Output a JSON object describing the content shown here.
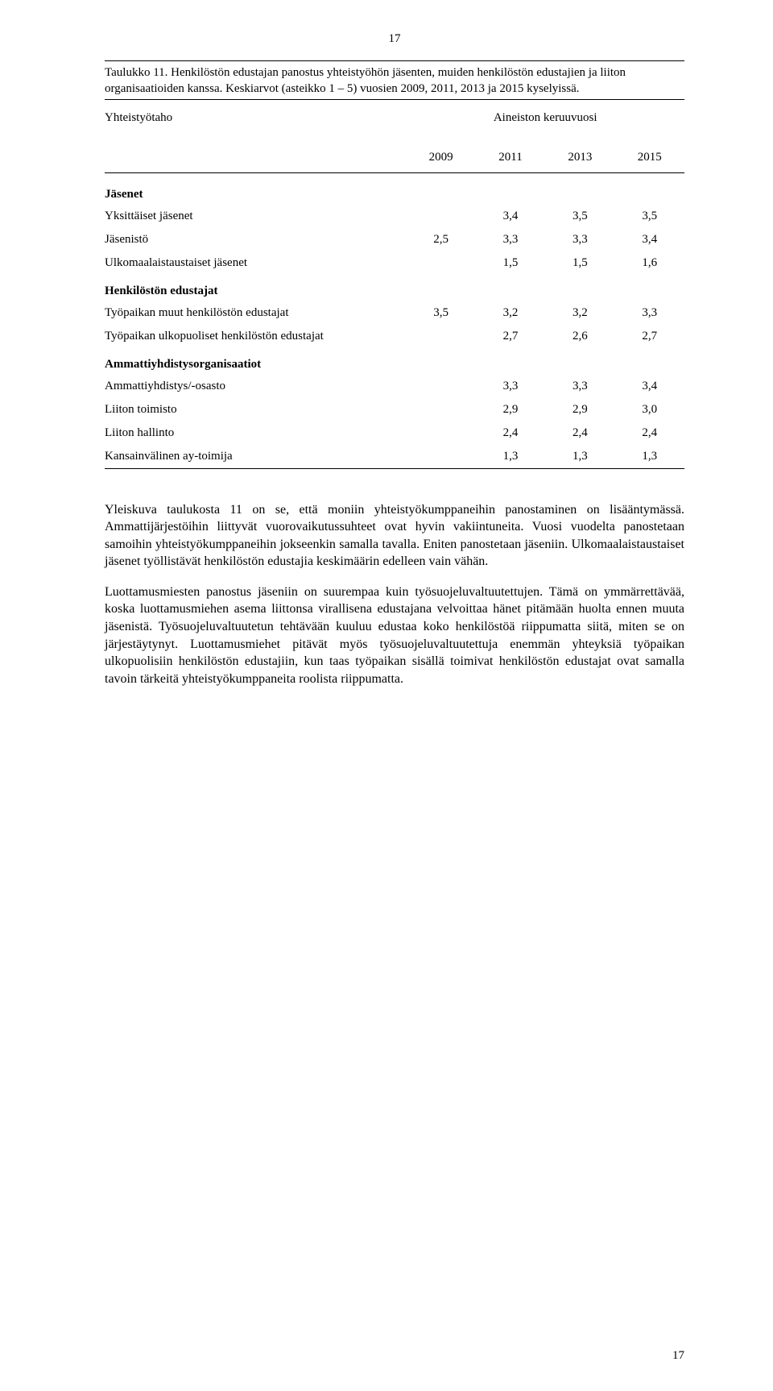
{
  "page_number_top": "17",
  "page_number_bottom": "17",
  "caption": "Taulukko 11. Henkilöstön edustajan panostus yhteistyöhön jäsenten, muiden henkilöstön edustajien ja liiton organisaatioiden kanssa. Keskiarvot (asteikko 1 – 5) vuosien 2009, 2011, 2013 ja 2015 kyselyissä.",
  "table": {
    "header_left": "Yhteistyötaho",
    "header_right": "Aineiston keruuvuosi",
    "years": [
      "2009",
      "2011",
      "2013",
      "2015"
    ],
    "sections": [
      {
        "title": "Jäsenet",
        "rows": [
          {
            "label": "Yksittäiset jäsenet",
            "values": [
              "",
              "3,4",
              "3,5",
              "3,5"
            ]
          },
          {
            "label": "Jäsenistö",
            "values": [
              "2,5",
              "3,3",
              "3,3",
              "3,4"
            ]
          },
          {
            "label": "Ulkomaalaistaustaiset jäsenet",
            "values": [
              "",
              "1,5",
              "1,5",
              "1,6"
            ]
          }
        ]
      },
      {
        "title": "Henkilöstön edustajat",
        "rows": [
          {
            "label": "Työpaikan muut henkilöstön edustajat",
            "values": [
              "3,5",
              "3,2",
              "3,2",
              "3,3"
            ]
          },
          {
            "label": "Työpaikan ulkopuoliset henkilöstön edustajat",
            "values": [
              "",
              "2,7",
              "2,6",
              "2,7"
            ]
          }
        ]
      },
      {
        "title": "Ammattiyhdistysorganisaatiot",
        "rows": [
          {
            "label": "Ammattiyhdistys/-osasto",
            "values": [
              "",
              "3,3",
              "3,3",
              "3,4"
            ]
          },
          {
            "label": "Liiton toimisto",
            "values": [
              "",
              "2,9",
              "2,9",
              "3,0"
            ]
          },
          {
            "label": "Liiton hallinto",
            "values": [
              "",
              "2,4",
              "2,4",
              "2,4"
            ]
          },
          {
            "label": "Kansainvälinen ay-toimija",
            "values": [
              "",
              "1,3",
              "1,3",
              "1,3"
            ]
          }
        ]
      }
    ]
  },
  "paragraphs": [
    "Yleiskuva taulukosta 11 on se, että moniin yhteistyökumppaneihin panostaminen on lisääntymässä. Ammattijärjestöihin liittyvät vuorovaikutussuhteet ovat hyvin vakiintuneita. Vuosi vuodelta panostetaan samoihin yhteistyökumppaneihin jokseenkin samalla tavalla. Eniten panostetaan jäseniin. Ulkomaalaistaustaiset jäsenet työllistävät henkilöstön edustajia keskimäärin edelleen vain vähän.",
    "Luottamusmiesten panostus jäseniin on suurempaa kuin työsuojeluvaltuutettujen. Tämä on ymmärrettävää, koska luottamusmiehen asema liittonsa virallisena edustajana velvoittaa hänet pitämään huolta ennen muuta jäsenistä. Työsuojeluvaltuutetun tehtävään kuuluu edustaa koko henkilöstöä riippumatta siitä, miten se on järjestäytynyt. Luottamusmiehet pitävät myös työsuojeluvaltuutettuja enemmän yhteyksiä työpaikan ulkopuolisiin henkilöstön edustajiin, kun taas työpaikan sisällä toimivat henkilöstön edustajat ovat samalla tavoin tärkeitä yhteistyökumppaneita roolista riippumatta."
  ]
}
